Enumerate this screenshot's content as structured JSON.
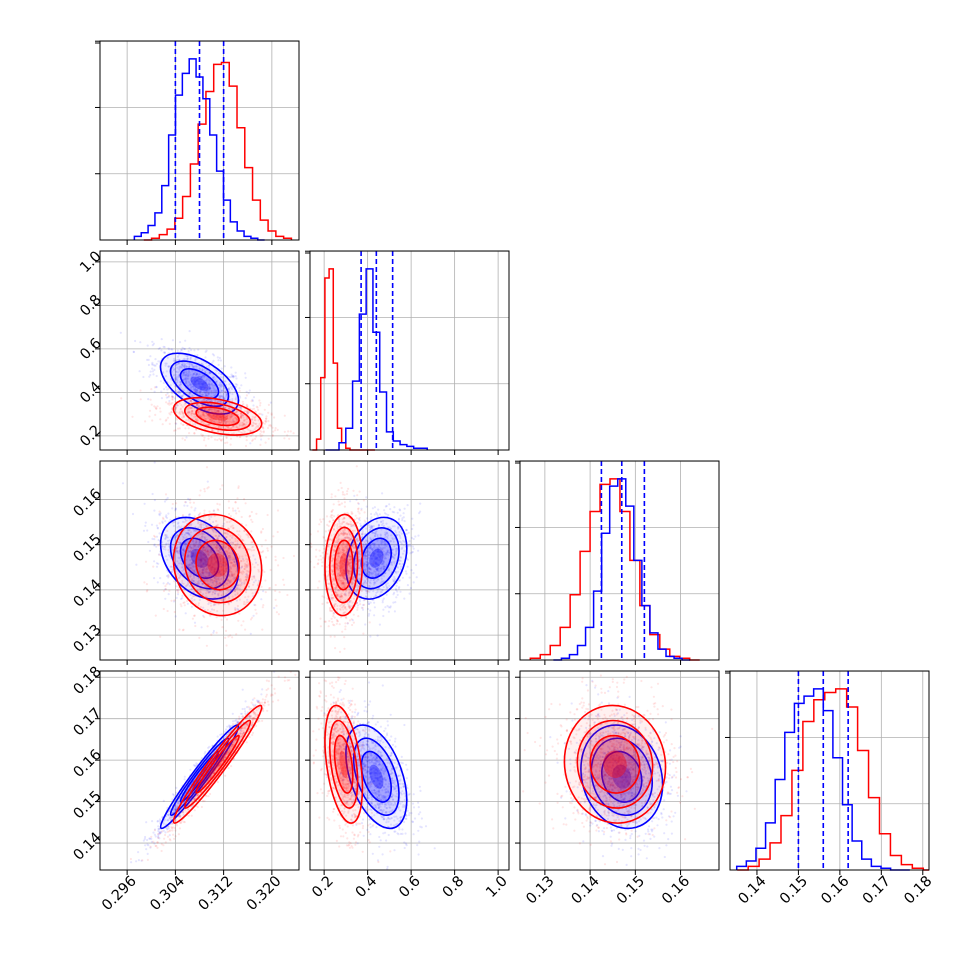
{
  "chart_data": {
    "type": "corner",
    "parameters": [
      {
        "range": [
          0.2915,
          0.3245
        ],
        "ticks": [
          0.296,
          0.304,
          0.312,
          0.32
        ],
        "tick_labels": [
          "0.296",
          "0.304",
          "0.312",
          "0.320"
        ]
      },
      {
        "range": [
          0.135,
          1.05
        ],
        "ticks": [
          0.2,
          0.4,
          0.6,
          0.8,
          1.0
        ],
        "tick_labels": [
          "0.2",
          "0.4",
          "0.6",
          "0.8",
          "1.0"
        ]
      },
      {
        "range": [
          0.1245,
          0.1685
        ],
        "ticks": [
          0.13,
          0.14,
          0.15,
          0.16
        ],
        "tick_labels": [
          "0.13",
          "0.14",
          "0.15",
          "0.16"
        ]
      },
      {
        "range": [
          0.1335,
          0.1815
        ],
        "ticks": [
          0.14,
          0.15,
          0.16,
          0.17,
          0.18
        ],
        "tick_labels": [
          "0.14",
          "0.15",
          "0.16",
          "0.17",
          "0.18"
        ]
      }
    ],
    "series": [
      {
        "color": "#0000ff",
        "means": [
          0.308,
          0.44,
          0.147,
          0.156
        ],
        "sds": [
          0.003,
          0.065,
          0.0042,
          0.0058
        ],
        "correlations": {
          "1-0": -0.55,
          "2-0": -0.35,
          "2-1": 0.25,
          "3-0": 0.97,
          "3-1": -0.45,
          "3-2": -0.15
        },
        "quantiles": [
          [
            0.304,
            0.308,
            0.312
          ],
          [
            0.37,
            0.44,
            0.515
          ],
          [
            0.1425,
            0.147,
            0.152
          ],
          [
            0.15,
            0.156,
            0.162
          ]
        ],
        "hist_counts": [
          [
            2,
            4,
            8,
            15,
            30,
            58,
            80,
            92,
            100,
            90,
            78,
            58,
            38,
            22,
            10,
            5,
            2,
            1,
            0
          ],
          [
            0,
            0,
            4,
            12,
            38,
            75,
            100,
            65,
            32,
            10,
            5,
            3,
            2,
            1,
            1
          ],
          [
            0,
            1,
            3,
            8,
            18,
            38,
            70,
            96,
            100,
            85,
            55,
            30,
            15,
            6,
            2,
            1,
            0
          ],
          [
            2,
            5,
            12,
            26,
            50,
            76,
            92,
            96,
            100,
            88,
            62,
            36,
            16,
            6,
            2,
            1,
            0,
            0
          ]
        ]
      },
      {
        "color": "#ff0000",
        "means": [
          0.311,
          0.29,
          0.1455,
          0.159
        ],
        "sds": [
          0.0034,
          0.04,
          0.0052,
          0.0066
        ],
        "correlations": {
          "1-0": -0.4,
          "2-0": -0.1,
          "2-1": 0.05,
          "3-0": 0.97,
          "3-1": -0.4,
          "3-2": -0.05
        },
        "quantiles": [
          [
            0.3075,
            0.311,
            0.3145
          ],
          [
            0.25,
            0.29,
            0.335
          ],
          [
            0.1405,
            0.1455,
            0.151
          ],
          [
            0.1525,
            0.159,
            0.1655
          ]
        ],
        "hist_counts": [
          [
            0,
            1,
            3,
            6,
            12,
            24,
            42,
            64,
            82,
            97,
            98,
            85,
            62,
            40,
            22,
            11,
            5,
            2,
            1
          ],
          [
            0,
            6,
            40,
            95,
            100,
            48,
            12,
            4,
            1,
            0,
            0,
            0,
            0,
            0,
            0
          ],
          [
            1,
            3,
            8,
            18,
            36,
            60,
            82,
            97,
            100,
            82,
            55,
            30,
            14,
            6,
            2,
            1,
            0
          ],
          [
            0,
            2,
            6,
            15,
            30,
            55,
            82,
            94,
            98,
            100,
            90,
            66,
            40,
            20,
            8,
            3,
            1,
            0
          ]
        ]
      }
    ],
    "quantile_line_color": "#0000ff"
  }
}
